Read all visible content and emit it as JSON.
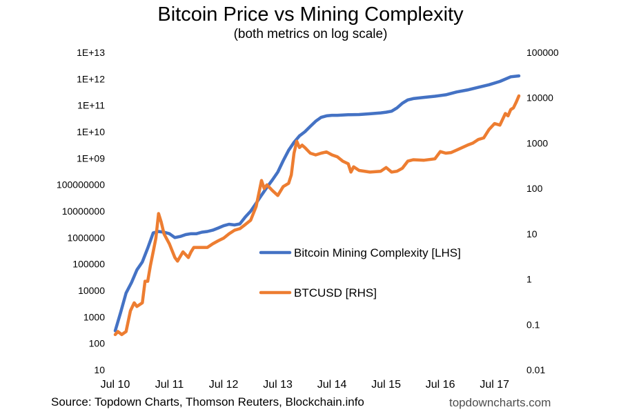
{
  "header": {
    "title": "Bitcoin Price vs Mining Complexity",
    "subtitle": "(both metrics on log scale)"
  },
  "footer": {
    "source": "Source: Topdown Charts, Thomson Reuters, Blockchain.info",
    "brand": "topdowncharts.com"
  },
  "chart_data": {
    "type": "line",
    "title": "Bitcoin Price vs Mining Complexity",
    "subtitle": "(both metrics on log scale)",
    "x_ticks": [
      "Jul 10",
      "Jul 11",
      "Jul 12",
      "Jul 13",
      "Jul 14",
      "Jul 15",
      "Jul 16",
      "Jul 17"
    ],
    "x_range": [
      2010.5,
      2017.95
    ],
    "y_left": {
      "scale": "log",
      "range": [
        10,
        10000000000000
      ],
      "ticks": [
        {
          "value": 10,
          "label": "10"
        },
        {
          "value": 100,
          "label": "100"
        },
        {
          "value": 1000,
          "label": "1000"
        },
        {
          "value": 10000,
          "label": "10000"
        },
        {
          "value": 100000,
          "label": "100000"
        },
        {
          "value": 1000000,
          "label": "1000000"
        },
        {
          "value": 10000000,
          "label": "10000000"
        },
        {
          "value": 100000000,
          "label": "100000000"
        },
        {
          "value": 1000000000,
          "label": "1E+09"
        },
        {
          "value": 10000000000,
          "label": "1E+10"
        },
        {
          "value": 100000000000,
          "label": "1E+11"
        },
        {
          "value": 1000000000000,
          "label": "1E+12"
        },
        {
          "value": 10000000000000,
          "label": "1E+13"
        }
      ]
    },
    "y_right": {
      "scale": "log",
      "range": [
        0.01,
        100000
      ],
      "ticks": [
        {
          "value": 0.01,
          "label": "0.01"
        },
        {
          "value": 0.1,
          "label": "0.1"
        },
        {
          "value": 1,
          "label": "1"
        },
        {
          "value": 10,
          "label": "10"
        },
        {
          "value": 100,
          "label": "100"
        },
        {
          "value": 1000,
          "label": "1000"
        },
        {
          "value": 10000,
          "label": "10000"
        },
        {
          "value": 100000,
          "label": "100000"
        }
      ]
    },
    "grid": false,
    "legend_position": "center-right",
    "series": [
      {
        "name": "Bitcoin Mining Complexity [LHS]",
        "axis": "left",
        "color": "#4472c4",
        "points": [
          [
            2010.5,
            300
          ],
          [
            2010.6,
            1500
          ],
          [
            2010.7,
            8000
          ],
          [
            2010.8,
            20000
          ],
          [
            2010.9,
            60000
          ],
          [
            2011.0,
            120000
          ],
          [
            2011.1,
            400000
          ],
          [
            2011.2,
            1500000
          ],
          [
            2011.3,
            1700000
          ],
          [
            2011.4,
            1600000
          ],
          [
            2011.5,
            1400000
          ],
          [
            2011.6,
            1000000
          ],
          [
            2011.7,
            1100000
          ],
          [
            2011.8,
            1300000
          ],
          [
            2011.9,
            1400000
          ],
          [
            2012.0,
            1400000
          ],
          [
            2012.1,
            1600000
          ],
          [
            2012.2,
            1700000
          ],
          [
            2012.3,
            1900000
          ],
          [
            2012.4,
            2300000
          ],
          [
            2012.5,
            2800000
          ],
          [
            2012.6,
            3200000
          ],
          [
            2012.7,
            3000000
          ],
          [
            2012.8,
            3300000
          ],
          [
            2012.9,
            6000000
          ],
          [
            2013.0,
            10000000
          ],
          [
            2013.1,
            20000000
          ],
          [
            2013.2,
            40000000
          ],
          [
            2013.3,
            80000000
          ],
          [
            2013.4,
            150000000
          ],
          [
            2013.5,
            300000000
          ],
          [
            2013.6,
            800000000
          ],
          [
            2013.7,
            2000000000
          ],
          [
            2013.8,
            4000000000
          ],
          [
            2013.9,
            7000000000
          ],
          [
            2014.0,
            10000000000
          ],
          [
            2014.1,
            16000000000
          ],
          [
            2014.2,
            25000000000
          ],
          [
            2014.3,
            35000000000
          ],
          [
            2014.4,
            40000000000
          ],
          [
            2014.5,
            42000000000
          ],
          [
            2014.6,
            42000000000
          ],
          [
            2014.8,
            44000000000
          ],
          [
            2015.0,
            45000000000
          ],
          [
            2015.2,
            48000000000
          ],
          [
            2015.4,
            52000000000
          ],
          [
            2015.5,
            55000000000
          ],
          [
            2015.6,
            60000000000
          ],
          [
            2015.7,
            80000000000
          ],
          [
            2015.8,
            120000000000
          ],
          [
            2015.9,
            160000000000
          ],
          [
            2016.0,
            180000000000
          ],
          [
            2016.2,
            200000000000
          ],
          [
            2016.4,
            220000000000
          ],
          [
            2016.6,
            250000000000
          ],
          [
            2016.8,
            320000000000
          ],
          [
            2017.0,
            380000000000
          ],
          [
            2017.2,
            480000000000
          ],
          [
            2017.4,
            600000000000
          ],
          [
            2017.6,
            800000000000
          ],
          [
            2017.8,
            1200000000000
          ],
          [
            2017.95,
            1300000000000
          ]
        ]
      },
      {
        "name": "BTCUSD [RHS]",
        "axis": "right",
        "color": "#ed7d31",
        "points": [
          [
            2010.5,
            0.06
          ],
          [
            2010.55,
            0.07
          ],
          [
            2010.62,
            0.06
          ],
          [
            2010.7,
            0.07
          ],
          [
            2010.78,
            0.2
          ],
          [
            2010.85,
            0.3
          ],
          [
            2010.9,
            0.25
          ],
          [
            2011.0,
            0.3
          ],
          [
            2011.05,
            0.9
          ],
          [
            2011.1,
            0.9
          ],
          [
            2011.15,
            2
          ],
          [
            2011.2,
            4
          ],
          [
            2011.25,
            8
          ],
          [
            2011.3,
            28
          ],
          [
            2011.35,
            18
          ],
          [
            2011.4,
            10
          ],
          [
            2011.5,
            6
          ],
          [
            2011.6,
            3
          ],
          [
            2011.65,
            2.5
          ],
          [
            2011.75,
            4
          ],
          [
            2011.85,
            3
          ],
          [
            2011.9,
            4
          ],
          [
            2011.95,
            5
          ],
          [
            2012.0,
            5
          ],
          [
            2012.1,
            5
          ],
          [
            2012.2,
            5
          ],
          [
            2012.3,
            6
          ],
          [
            2012.4,
            7
          ],
          [
            2012.5,
            8
          ],
          [
            2012.6,
            10
          ],
          [
            2012.7,
            12
          ],
          [
            2012.8,
            13
          ],
          [
            2012.9,
            16
          ],
          [
            2013.0,
            20
          ],
          [
            2013.1,
            40
          ],
          [
            2013.2,
            150
          ],
          [
            2013.25,
            100
          ],
          [
            2013.3,
            120
          ],
          [
            2013.4,
            90
          ],
          [
            2013.5,
            70
          ],
          [
            2013.6,
            110
          ],
          [
            2013.7,
            130
          ],
          [
            2013.75,
            200
          ],
          [
            2013.8,
            600
          ],
          [
            2013.85,
            1100
          ],
          [
            2013.9,
            800
          ],
          [
            2013.95,
            900
          ],
          [
            2014.0,
            800
          ],
          [
            2014.1,
            600
          ],
          [
            2014.2,
            550
          ],
          [
            2014.3,
            600
          ],
          [
            2014.4,
            640
          ],
          [
            2014.5,
            550
          ],
          [
            2014.6,
            500
          ],
          [
            2014.7,
            400
          ],
          [
            2014.8,
            350
          ],
          [
            2014.85,
            230
          ],
          [
            2014.9,
            300
          ],
          [
            2015.0,
            250
          ],
          [
            2015.2,
            230
          ],
          [
            2015.4,
            240
          ],
          [
            2015.5,
            290
          ],
          [
            2015.6,
            230
          ],
          [
            2015.7,
            240
          ],
          [
            2015.8,
            280
          ],
          [
            2015.9,
            400
          ],
          [
            2016.0,
            430
          ],
          [
            2016.2,
            420
          ],
          [
            2016.4,
            450
          ],
          [
            2016.5,
            650
          ],
          [
            2016.6,
            600
          ],
          [
            2016.7,
            620
          ],
          [
            2016.8,
            700
          ],
          [
            2017.0,
            900
          ],
          [
            2017.1,
            1000
          ],
          [
            2017.2,
            1200
          ],
          [
            2017.3,
            1300
          ],
          [
            2017.4,
            2000
          ],
          [
            2017.5,
            2700
          ],
          [
            2017.6,
            2500
          ],
          [
            2017.7,
            4500
          ],
          [
            2017.75,
            4000
          ],
          [
            2017.8,
            5500
          ],
          [
            2017.85,
            6000
          ],
          [
            2017.9,
            8000
          ],
          [
            2017.95,
            11000
          ]
        ]
      }
    ]
  }
}
